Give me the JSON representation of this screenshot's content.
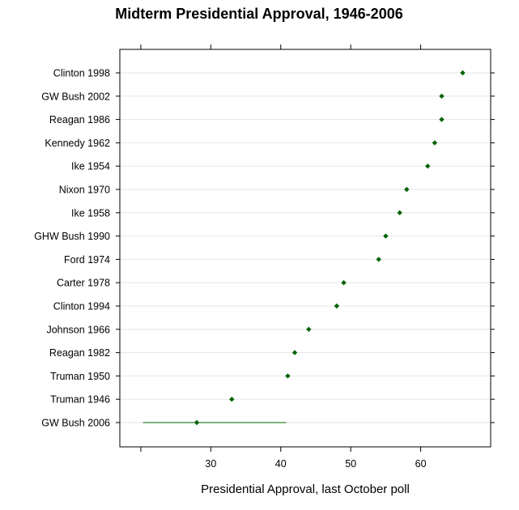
{
  "chart_data": {
    "type": "scatter",
    "title": "Midterm Presidential Approval, 1946-2006",
    "xlabel": "Presidential Approval, last October poll",
    "ylabel": "",
    "xlim": [
      17,
      70
    ],
    "xticks": [
      30,
      40,
      50,
      60
    ],
    "grid": true,
    "point_color": "#006400",
    "categories": [
      "Clinton 1998",
      "GW Bush 2002",
      "Reagan 1986",
      "Kennedy 1962",
      "Ike 1954",
      "Nixon 1970",
      "Ike 1958",
      "GHW Bush 1990",
      "Ford 1974",
      "Carter 1978",
      "Clinton 1994",
      "Johnson 1966",
      "Reagan 1982",
      "Truman 1950",
      "Truman 1946",
      "GW Bush 2006"
    ],
    "values": [
      66,
      63,
      63,
      62,
      61,
      58,
      57,
      55,
      54,
      49,
      48,
      44,
      42,
      41,
      33,
      28
    ],
    "ranges": [
      {
        "category": "GW Bush 2006",
        "low": 20.3,
        "high": 40.8
      }
    ]
  }
}
